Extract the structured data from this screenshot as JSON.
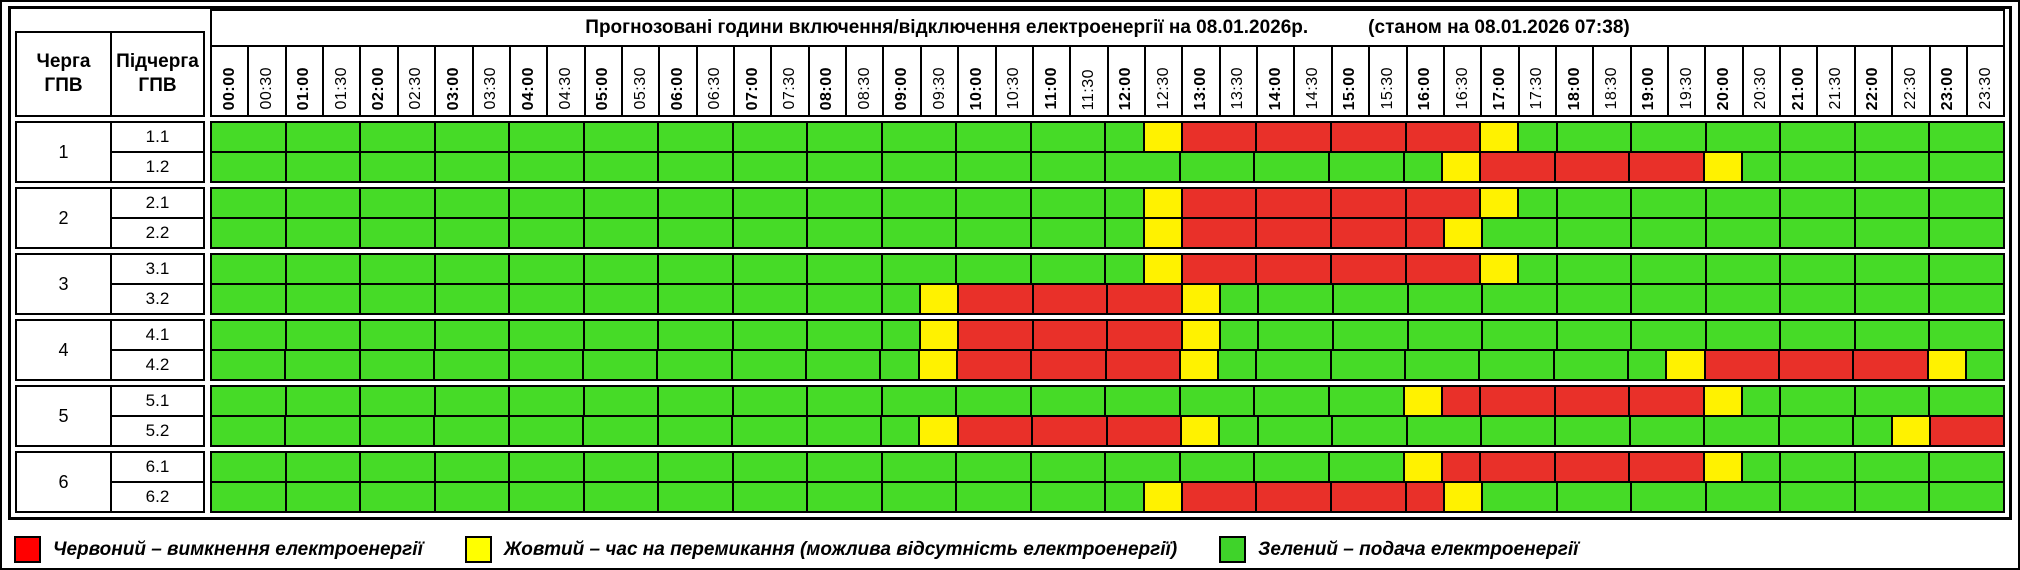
{
  "columns": {
    "queue": "Черга ГПВ",
    "subqueue": "Підчерга ГПВ"
  },
  "chart_data": {
    "type": "heatmap",
    "title": "Прогнозовані години включення/відключення електроенергії на 08.01.2026р.",
    "subtitle": "(станом на 08.01.2026 07:38)",
    "x_labels": [
      "00:00",
      "00:30",
      "01:00",
      "01:30",
      "02:00",
      "02:30",
      "03:00",
      "03:30",
      "04:00",
      "04:30",
      "05:00",
      "05:30",
      "06:00",
      "06:30",
      "07:00",
      "07:30",
      "08:00",
      "08:30",
      "09:00",
      "09:30",
      "10:00",
      "10:30",
      "11:00",
      "11:30",
      "12:00",
      "12:30",
      "13:00",
      "13:30",
      "14:00",
      "14:30",
      "15:00",
      "15:30",
      "16:00",
      "16:30",
      "17:00",
      "17:30",
      "18:00",
      "18:30",
      "19:00",
      "19:30",
      "20:00",
      "20:30",
      "21:00",
      "21:30",
      "22:00",
      "22:30",
      "23:00",
      "23:30"
    ],
    "codes": {
      "G": "green",
      "Y": "yellow",
      "R": "red"
    },
    "palette": {
      "green": "#46DB27",
      "yellow": "#FFF200",
      "red": "#E93029"
    },
    "rows": [
      {
        "queue": "1",
        "subqueue": "1.1",
        "slots": "GGGGGGGGGGGGGGGGGGGGGGGGGYRRRRRRRRYGGGGGGGGGGGGG"
      },
      {
        "queue": "1",
        "subqueue": "1.2",
        "slots": "GGGGGGGGGGGGGGGGGGGGGGGGGGGGGGGGGYRRRRRRYGGGGGGG"
      },
      {
        "queue": "2",
        "subqueue": "2.1",
        "slots": "GGGGGGGGGGGGGGGGGGGGGGGGGYRRRRRRRRYGGGGGGGGGGGGG"
      },
      {
        "queue": "2",
        "subqueue": "2.2",
        "slots": "GGGGGGGGGGGGGGGGGGGGGGGGGYRRRRRRRYGGGGGGGGGGGGGG"
      },
      {
        "queue": "3",
        "subqueue": "3.1",
        "slots": "GGGGGGGGGGGGGGGGGGGGGGGGGYRRRRRRRRYGGGGGGGGGGGGG"
      },
      {
        "queue": "3",
        "subqueue": "3.2",
        "slots": "GGGGGGGGGGGGGGGGGGGYRRRRRRYGGGGGGGGGGGGGGGGGGGGG"
      },
      {
        "queue": "4",
        "subqueue": "4.1",
        "slots": "GGGGGGGGGGGGGGGGGGGYRRRRRRYGGGGGGGGGGGGGGGGGGGGG"
      },
      {
        "queue": "4",
        "subqueue": "4.2",
        "slots": "GGGGGGGGGGGGGGGGGGGYRRRRRRYGGGGGGGGGGGGYRRRRRRYG"
      },
      {
        "queue": "5",
        "subqueue": "5.1",
        "slots": "GGGGGGGGGGGGGGGGGGGGGGGGGGGGGGGGYRRRRRRRYGGGGGGG"
      },
      {
        "queue": "5",
        "subqueue": "5.2",
        "slots": "GGGGGGGGGGGGGGGGGGGYRRRRRRYGGGGGGGGGGGGGGGGGGYRR"
      },
      {
        "queue": "6",
        "subqueue": "6.1",
        "slots": "GGGGGGGGGGGGGGGGGGGGGGGGGGGGGGGGYRRRRRRRYGGGGGGG"
      },
      {
        "queue": "6",
        "subqueue": "6.2",
        "slots": "GGGGGGGGGGGGGGGGGGGGGGGGGYRRRRRRRYGGGGGGGGGGGGGG"
      }
    ],
    "legend": [
      {
        "icon": "red-legend-swatch",
        "color": "#FF0000",
        "label": "Червоний – вимкнення електроенергії"
      },
      {
        "icon": "yellow-legend-swatch",
        "color": "#FFFF00",
        "label": "Жовтий – час на перемикання (можлива відсутність електроенергії)"
      },
      {
        "icon": "green-legend-swatch",
        "color": "#3FD32A",
        "label": "Зелений – подача електроенергії"
      }
    ]
  }
}
